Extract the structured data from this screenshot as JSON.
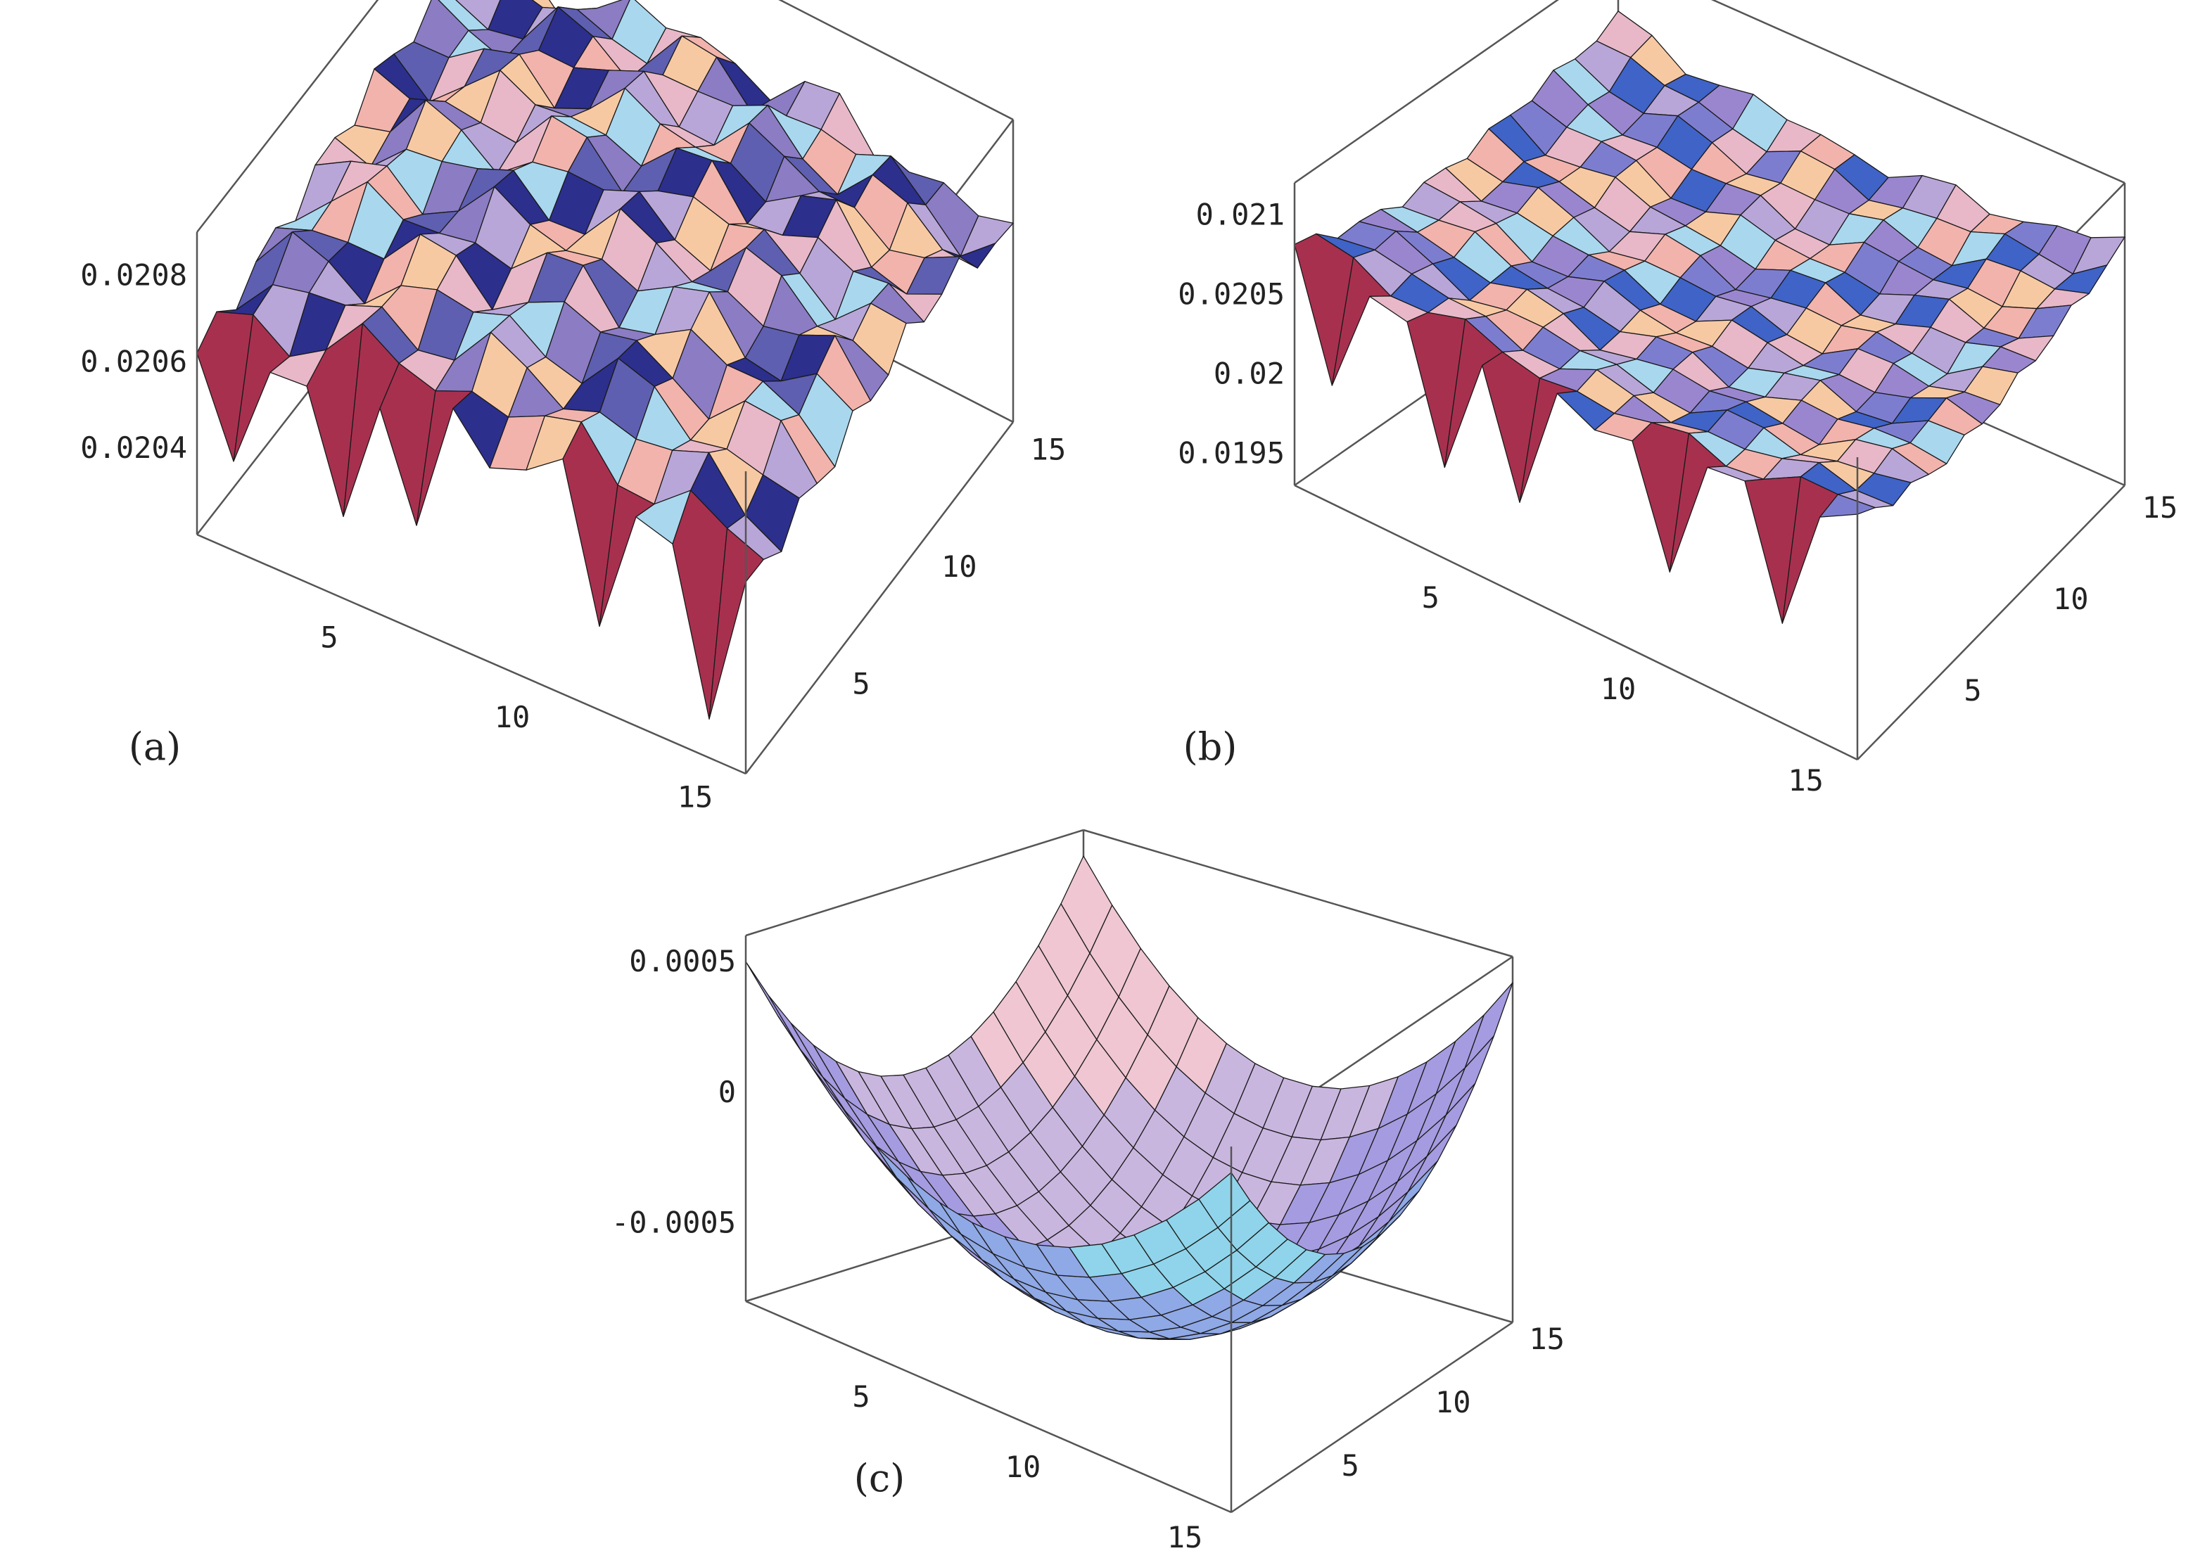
{
  "chart_data": [
    {
      "type": "surface",
      "panel_label": "(a)",
      "grid": true,
      "x_ticks": [
        "5",
        "10",
        "15"
      ],
      "y_ticks": [
        "5",
        "10",
        "15"
      ],
      "z_ticks": [
        "0.0204",
        "0.0206",
        "0.0208"
      ],
      "xlim": [
        1,
        16
      ],
      "ylim": [
        1,
        16
      ],
      "zlim": [
        0.0202,
        0.0209
      ],
      "surface": {
        "model": "dome",
        "nx": 16,
        "ny": 16,
        "base": 0.02062,
        "amplitude": 0.00018,
        "ripple": 7e-05,
        "spike_depth": 0.0003,
        "spikes_along_front_edge_x": [
          2,
          5,
          7,
          12,
          15
        ]
      },
      "colors": [
        "#f2b3ad",
        "#b9a6d8",
        "#5e5fb0",
        "#f7c9a3",
        "#a9d7ee",
        "#2c2f8c",
        "#e8b8c8",
        "#8b7cc4"
      ],
      "spike_color": "#a8304f"
    },
    {
      "type": "surface",
      "panel_label": "(b)",
      "grid": true,
      "x_ticks": [
        "5",
        "10",
        "15"
      ],
      "y_ticks": [
        "5",
        "10",
        "15"
      ],
      "z_ticks": [
        "0.0195",
        "0.02",
        "0.0205",
        "0.021"
      ],
      "xlim": [
        1,
        16
      ],
      "ylim": [
        1,
        16
      ],
      "zlim": [
        0.0193,
        0.0212
      ],
      "surface": {
        "model": "dish",
        "nx": 16,
        "ny": 16,
        "base": 0.02058,
        "amplitude": 0.00036,
        "ripple": 8e-05,
        "spike_depth": 0.0008,
        "spikes_along_front_edge_x": [
          2,
          5,
          7,
          11,
          14
        ]
      },
      "colors": [
        "#f2b3ad",
        "#b9a6d8",
        "#7d7dd0",
        "#f7c9a3",
        "#a9d7ee",
        "#3f63c7",
        "#e8b8c8",
        "#9a86cf"
      ],
      "spike_color": "#a8304f"
    },
    {
      "type": "surface",
      "panel_label": "(c)",
      "grid": true,
      "x_ticks": [
        "5",
        "10",
        "15"
      ],
      "y_ticks": [
        "5",
        "10",
        "15"
      ],
      "z_ticks": [
        "-0.0005",
        "0",
        "0.0005"
      ],
      "xlim": [
        1,
        16
      ],
      "ylim": [
        1,
        16
      ],
      "zlim": [
        -0.0008,
        0.0006
      ],
      "surface": {
        "model": "bowl",
        "nx": 16,
        "ny": 16,
        "base": -0.00075,
        "amplitude": 0.00125,
        "ripple": 0,
        "spike_depth": 0,
        "spikes_along_front_edge_x": []
      },
      "colors": [
        "#efc6d2",
        "#c9b6df",
        "#a59be0",
        "#8fa8e6",
        "#8fd4ea"
      ],
      "spike_color": "#a8304f"
    }
  ]
}
